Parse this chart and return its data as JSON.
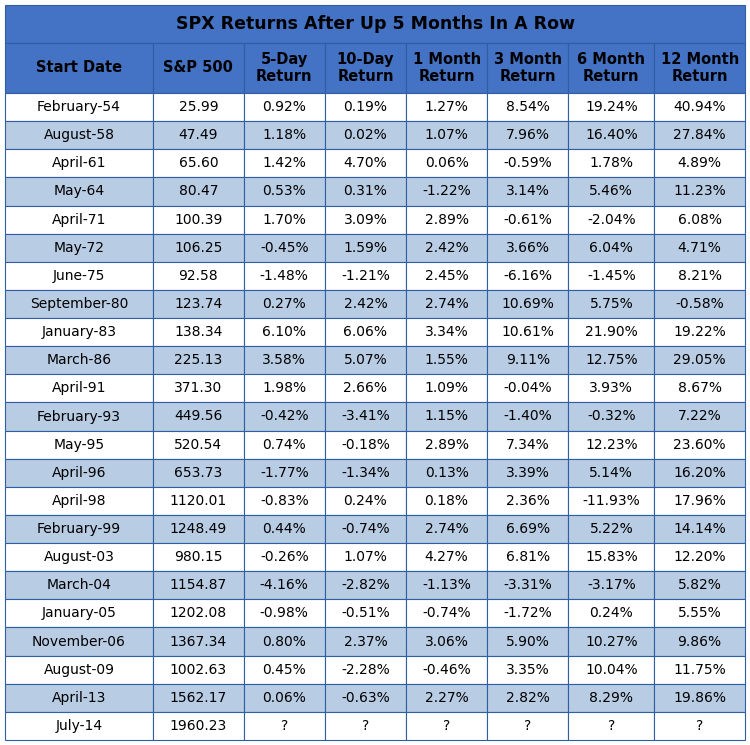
{
  "title": "SPX Returns After Up 5 Months In A Row",
  "columns": [
    "Start Date",
    "S&P 500",
    "5-Day\nReturn",
    "10-Day\nReturn",
    "1 Month\nReturn",
    "3 Month\nReturn",
    "6 Month\nReturn",
    "12 Month\nReturn"
  ],
  "rows": [
    [
      "February-54",
      "25.99",
      "0.92%",
      "0.19%",
      "1.27%",
      "8.54%",
      "19.24%",
      "40.94%"
    ],
    [
      "August-58",
      "47.49",
      "1.18%",
      "0.02%",
      "1.07%",
      "7.96%",
      "16.40%",
      "27.84%"
    ],
    [
      "April-61",
      "65.60",
      "1.42%",
      "4.70%",
      "0.06%",
      "-0.59%",
      "1.78%",
      "4.89%"
    ],
    [
      "May-64",
      "80.47",
      "0.53%",
      "0.31%",
      "-1.22%",
      "3.14%",
      "5.46%",
      "11.23%"
    ],
    [
      "April-71",
      "100.39",
      "1.70%",
      "3.09%",
      "2.89%",
      "-0.61%",
      "-2.04%",
      "6.08%"
    ],
    [
      "May-72",
      "106.25",
      "-0.45%",
      "1.59%",
      "2.42%",
      "3.66%",
      "6.04%",
      "4.71%"
    ],
    [
      "June-75",
      "92.58",
      "-1.48%",
      "-1.21%",
      "2.45%",
      "-6.16%",
      "-1.45%",
      "8.21%"
    ],
    [
      "September-80",
      "123.74",
      "0.27%",
      "2.42%",
      "2.74%",
      "10.69%",
      "5.75%",
      "-0.58%"
    ],
    [
      "January-83",
      "138.34",
      "6.10%",
      "6.06%",
      "3.34%",
      "10.61%",
      "21.90%",
      "19.22%"
    ],
    [
      "March-86",
      "225.13",
      "3.58%",
      "5.07%",
      "1.55%",
      "9.11%",
      "12.75%",
      "29.05%"
    ],
    [
      "April-91",
      "371.30",
      "1.98%",
      "2.66%",
      "1.09%",
      "-0.04%",
      "3.93%",
      "8.67%"
    ],
    [
      "February-93",
      "449.56",
      "-0.42%",
      "-3.41%",
      "1.15%",
      "-1.40%",
      "-0.32%",
      "7.22%"
    ],
    [
      "May-95",
      "520.54",
      "0.74%",
      "-0.18%",
      "2.89%",
      "7.34%",
      "12.23%",
      "23.60%"
    ],
    [
      "April-96",
      "653.73",
      "-1.77%",
      "-1.34%",
      "0.13%",
      "3.39%",
      "5.14%",
      "16.20%"
    ],
    [
      "April-98",
      "1120.01",
      "-0.83%",
      "0.24%",
      "0.18%",
      "2.36%",
      "-11.93%",
      "17.96%"
    ],
    [
      "February-99",
      "1248.49",
      "0.44%",
      "-0.74%",
      "2.74%",
      "6.69%",
      "5.22%",
      "14.14%"
    ],
    [
      "August-03",
      "980.15",
      "-0.26%",
      "1.07%",
      "4.27%",
      "6.81%",
      "15.83%",
      "12.20%"
    ],
    [
      "March-04",
      "1154.87",
      "-4.16%",
      "-2.82%",
      "-1.13%",
      "-3.31%",
      "-3.17%",
      "5.82%"
    ],
    [
      "January-05",
      "1202.08",
      "-0.98%",
      "-0.51%",
      "-0.74%",
      "-1.72%",
      "0.24%",
      "5.55%"
    ],
    [
      "November-06",
      "1367.34",
      "0.80%",
      "2.37%",
      "3.06%",
      "5.90%",
      "10.27%",
      "9.86%"
    ],
    [
      "August-09",
      "1002.63",
      "0.45%",
      "-2.28%",
      "-0.46%",
      "3.35%",
      "10.04%",
      "11.75%"
    ],
    [
      "April-13",
      "1562.17",
      "0.06%",
      "-0.63%",
      "2.27%",
      "2.82%",
      "8.29%",
      "19.86%"
    ],
    [
      "July-14",
      "1960.23",
      "?",
      "?",
      "?",
      "?",
      "?",
      "?"
    ]
  ],
  "header_bg": "#4472C4",
  "title_bg": "#4472C4",
  "row_bg_dark": "#B8CCE4",
  "row_bg_light": "#FFFFFF",
  "text_color_header": "#000000",
  "text_color_data": "#000000",
  "border_color": "#2E5FA3",
  "title_fontsize": 12.5,
  "header_fontsize": 10.5,
  "data_fontsize": 10,
  "col_widths_rel": [
    1.55,
    0.95,
    0.85,
    0.85,
    0.85,
    0.85,
    0.9,
    0.95
  ]
}
